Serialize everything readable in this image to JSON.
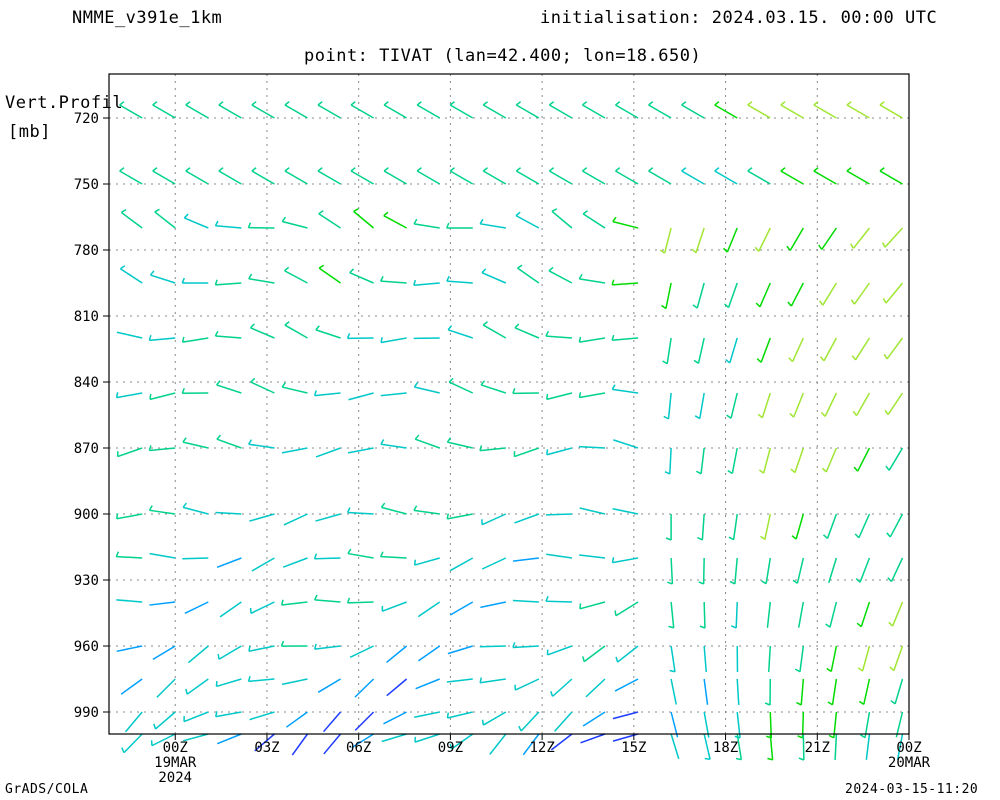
{
  "header": {
    "model": "NMME_v391e_1km",
    "initialisation": "initialisation: 2024.03.15. 00:00 UTC",
    "point": "point: TIVAT (lan=42.400; lon=18.650)"
  },
  "footer": {
    "left": "GrADS/COLA",
    "right": "2024-03-15-11:20"
  },
  "colors": {
    "palette": [
      "#a000c8",
      "#1e3cff",
      "#00a0ff",
      "#00c8c8",
      "#00d28c",
      "#00dc00",
      "#a0e632",
      "#e6dc32",
      "#e6af2d",
      "#f08228",
      "#fa3c3c"
    ],
    "grid": "#888888",
    "frame": "#000000"
  },
  "chart_data": {
    "type": "wind-barb vertical profile",
    "ylabel": "Vert.Profil",
    "yunit": "[mb]",
    "ylim": [
      1000,
      700
    ],
    "yticks": [
      720,
      750,
      780,
      810,
      840,
      870,
      900,
      930,
      960,
      990
    ],
    "xlim": [
      "2024-03-18 21:50",
      "2024-03-20 00:00"
    ],
    "xticks": [
      {
        "time": "2024-03-19 00:00",
        "label": "00Z",
        "date": "19MAR",
        "year": "2024"
      },
      {
        "time": "2024-03-19 03:00",
        "label": "03Z",
        "date": "",
        "year": ""
      },
      {
        "time": "2024-03-19 06:00",
        "label": "06Z",
        "date": "",
        "year": ""
      },
      {
        "time": "2024-03-19 09:00",
        "label": "09Z",
        "date": "",
        "year": ""
      },
      {
        "time": "2024-03-19 12:00",
        "label": "12Z",
        "date": "",
        "year": ""
      },
      {
        "time": "2024-03-19 15:00",
        "label": "15Z",
        "date": "",
        "year": ""
      },
      {
        "time": "2024-03-19 18:00",
        "label": "18Z",
        "date": "",
        "year": ""
      },
      {
        "time": "2024-03-19 21:00",
        "label": "21Z",
        "date": "",
        "year": ""
      },
      {
        "time": "2024-03-20 00:00",
        "label": "00Z",
        "date": "20MAR",
        "year": ""
      }
    ],
    "grid": true,
    "barb_levels_mb": [
      720,
      750,
      770,
      795,
      820,
      845,
      870,
      900,
      920,
      940,
      960,
      975,
      990,
      1000
    ],
    "barb_step_hours": 1,
    "barb_first_hour_offset": -2,
    "barb_count": 27,
    "direction_note": "directions in degrees (meteorological, from), speeds in knots",
    "levels": [
      {
        "p": 720,
        "dir": [
          300,
          300,
          300,
          300,
          300,
          300,
          300,
          300,
          300,
          300,
          300,
          300,
          300,
          300,
          300,
          300,
          300,
          300,
          300,
          300,
          300,
          300,
          300,
          300,
          300,
          300,
          300
        ],
        "spd": [
          8,
          7,
          7,
          7,
          7,
          7,
          7,
          7,
          7,
          7,
          7,
          7,
          7,
          7,
          7,
          7,
          7,
          7,
          7,
          8,
          8,
          8,
          8,
          8,
          8,
          8,
          8
        ]
      },
      {
        "p": 750,
        "dir": [
          300,
          300,
          300,
          300,
          300,
          300,
          300,
          300,
          300,
          300,
          300,
          300,
          300,
          300,
          300,
          300,
          300,
          300,
          300,
          300,
          300,
          300,
          300,
          300,
          300,
          300,
          300
        ],
        "spd": [
          8,
          7,
          7,
          7,
          7,
          7,
          7,
          7,
          6,
          6,
          6,
          6,
          6,
          7,
          7,
          7,
          7,
          7,
          5,
          5,
          5,
          6,
          6,
          6,
          6,
          6,
          7
        ]
      }
    ]
  }
}
